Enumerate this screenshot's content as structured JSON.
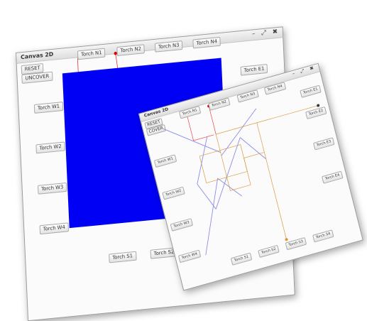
{
  "window1": {
    "title": "Canvas 2D",
    "controls": {
      "minimize": "–",
      "maximize": "⤢",
      "close": "✖"
    },
    "buttons": {
      "reset": "RESET",
      "uncover": "UNCOVER"
    },
    "torches": {
      "n1": "Torch N1",
      "n2": "Torch N2",
      "n3": "Torch N3",
      "n4": "Torch N4",
      "e1": "Torch E1",
      "w1": "Torch W1",
      "w2": "Torch W2",
      "w3": "Torch W3",
      "w4": "Torch W4",
      "s1": "Torch S1",
      "s2": "Torch S2"
    },
    "colors": {
      "cover": "#0000f5",
      "beam": "#e03030",
      "torch_dot": "#e00000"
    }
  },
  "window2": {
    "title": "Canvas 2D",
    "controls": {
      "minimize": "–",
      "maximize": "⤢",
      "close": "✖"
    },
    "buttons": {
      "reset": "RESET",
      "cover": "COVER"
    },
    "torches": {
      "n1": "Torch N1",
      "n2": "Torch N2",
      "n3": "Torch N3",
      "n4": "Torch N4",
      "e1": "Torch E1",
      "e2": "Torch E2",
      "e3": "Torch E3",
      "e4": "Torch E4",
      "w1": "Torch W1",
      "w2": "Torch W2",
      "w3": "Torch W3",
      "w4": "Torch W4",
      "s1": "Torch S1",
      "s2": "Torch S2",
      "s3": "Torch S3",
      "s4": "Torch S4"
    },
    "colors": {
      "mirror": "#8a8ae8",
      "beam_red": "#e84040",
      "beam_orange": "#d89a40",
      "torch_red": "#e00000",
      "torch_dark": "#333333",
      "torch_orange": "#e89020"
    }
  }
}
